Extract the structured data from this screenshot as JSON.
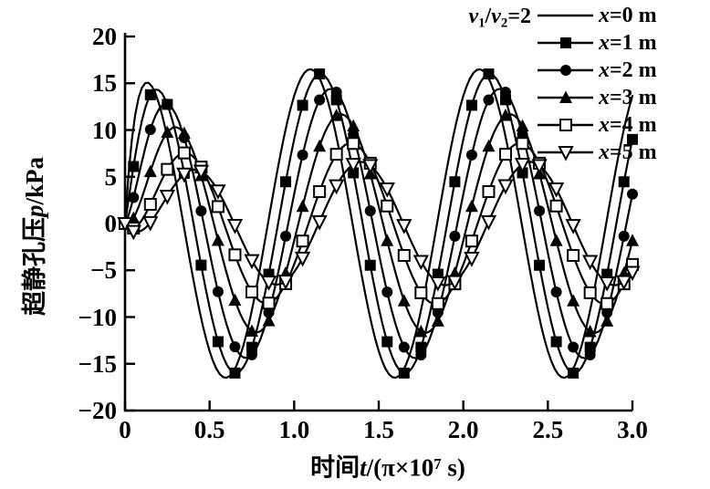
{
  "figure": {
    "background": "#ffffff",
    "ink_color": "#000000"
  },
  "chart_data": {
    "type": "line",
    "title": "",
    "legend_title": "v1/v2=2",
    "xlabel": "时间t/(π×10⁷ s)",
    "ylabel": "超静孔压p/kPa",
    "xlim": [
      0,
      3
    ],
    "ylim": [
      -20,
      20
    ],
    "grid": false,
    "legend_position": "top-right",
    "x_tick_values": [
      0,
      0.5,
      1.0,
      1.5,
      2.0,
      2.5,
      3.0
    ],
    "x_ticks": [
      "0",
      "0.5",
      "1.0",
      "1.5",
      "2.0",
      "2.5",
      "3.0"
    ],
    "y_tick_values": [
      20,
      15,
      10,
      5,
      0,
      -5,
      -10,
      -15,
      -20
    ],
    "y_ticks": [
      "20",
      "15",
      "10",
      "5",
      "0",
      "−5",
      "−10",
      "−15",
      "−20"
    ],
    "model": "p(x,t) = A(x) · (1 − exp(−t/tau)) · sin(2π(t − delay)/period); t in units of π×10⁷ s, p in kPa",
    "period": 1.0,
    "curve_step": 0.02,
    "marker_step": 0.1,
    "series": [
      {
        "name": "x=0 m",
        "marker": "none",
        "amplitude_kpa": 16.5,
        "delay": -0.155,
        "ramp_tau": 0.047,
        "first_peak": {
          "t": 0.1,
          "p": 14.4
        },
        "steady_peak_t": 1.1,
        "steady_peak_p": 16.5,
        "first_trough": {
          "t": 0.6,
          "p": -16.5
        }
      },
      {
        "name": "x=1 m",
        "marker": "square-filled",
        "amplitude_kpa": 16.0,
        "delay": -0.095,
        "ramp_tau": 0.076,
        "first_peak": {
          "t": 0.16,
          "p": 13.9
        },
        "steady_peak_t": 1.16,
        "steady_peak_p": 16.0,
        "first_trough": {
          "t": 0.66,
          "p": -16.0
        }
      },
      {
        "name": "x=2 m",
        "marker": "circle-filled",
        "amplitude_kpa": 14.4,
        "delay": -0.035,
        "ramp_tau": 0.105,
        "first_peak": {
          "t": 0.22,
          "p": 12.3
        },
        "steady_peak_t": 1.22,
        "steady_peak_p": 14.4,
        "first_trough": {
          "t": 0.72,
          "p": -14.4
        }
      },
      {
        "name": "x=3 m",
        "marker": "triangle-up-filled",
        "amplitude_kpa": 11.7,
        "delay": 0.025,
        "ramp_tau": 0.135,
        "first_peak": {
          "t": 0.28,
          "p": 10.0
        },
        "steady_peak_t": 1.28,
        "steady_peak_p": 11.7,
        "first_trough": {
          "t": 0.78,
          "p": -11.7
        }
      },
      {
        "name": "x=4 m",
        "marker": "square-open",
        "amplitude_kpa": 8.6,
        "delay": 0.085,
        "ramp_tau": 0.164,
        "first_peak": {
          "t": 0.34,
          "p": 7.4
        },
        "steady_peak_t": 1.34,
        "steady_peak_p": 8.6,
        "first_trough": {
          "t": 0.84,
          "p": -8.6
        }
      },
      {
        "name": "x=5 m",
        "marker": "triangle-down-open",
        "amplitude_kpa": 6.6,
        "delay": 0.145,
        "ramp_tau": 0.194,
        "first_peak": {
          "t": 0.4,
          "p": 5.7
        },
        "steady_peak_t": 1.4,
        "steady_peak_p": 6.6,
        "first_trough": {
          "t": 0.9,
          "p": -6.6
        }
      }
    ]
  },
  "labels": {
    "x_cjk": "时间",
    "x_var": "t",
    "x_mid": "/(π×10",
    "x_sup": "7",
    "x_end": " s)",
    "y_cjk": "超静孔压",
    "y_var": "p",
    "y_unit": "/kPa"
  },
  "legend": {
    "title_var1": "v",
    "title_sub1": "1",
    "title_slash": "/",
    "title_var2": "v",
    "title_sub2": "2",
    "title_eq": "=2",
    "items": [
      {
        "var": "x",
        "rest": "=0 m",
        "marker": "none"
      },
      {
        "var": "x",
        "rest": "=1 m",
        "marker": "square-filled"
      },
      {
        "var": "x",
        "rest": "=2 m",
        "marker": "circle-filled"
      },
      {
        "var": "x",
        "rest": "=3 m",
        "marker": "triangle-up-filled"
      },
      {
        "var": "x",
        "rest": "=4 m",
        "marker": "square-open"
      },
      {
        "var": "x",
        "rest": "=5 m",
        "marker": "triangle-down-open"
      }
    ]
  }
}
